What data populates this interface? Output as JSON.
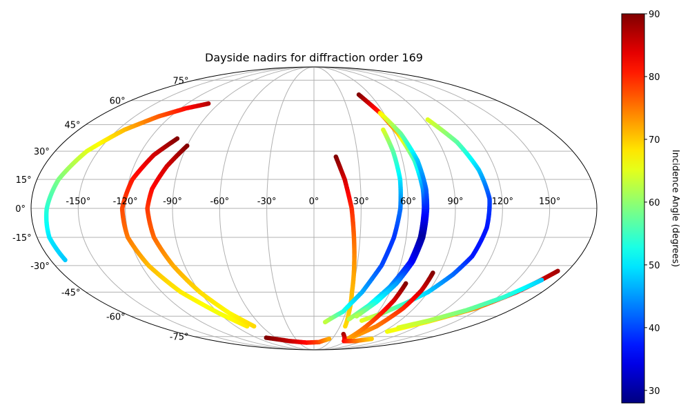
{
  "chart_data": {
    "type": "scatter",
    "projection": "mollweide",
    "title": "Dayside nadirs for diffraction order 169",
    "xlabel": "",
    "ylabel": "",
    "x_range": [
      -180,
      180
    ],
    "y_range": [
      -90,
      90
    ],
    "grid": true,
    "lon_tick_labels": [
      "-150°",
      "-120°",
      "-90°",
      "-60°",
      "-30°",
      "0°",
      "30°",
      "60°",
      "90°",
      "120°",
      "150°"
    ],
    "lon_tick_values": [
      -150,
      -120,
      -90,
      -60,
      -30,
      0,
      30,
      60,
      90,
      120,
      150
    ],
    "lat_tick_labels": [
      "75°",
      "60°",
      "45°",
      "30°",
      "15°",
      "0°",
      "-15°",
      "-30°",
      "-45°",
      "-60°",
      "-75°"
    ],
    "lat_tick_values": [
      75,
      60,
      45,
      30,
      15,
      0,
      -15,
      -30,
      -45,
      -60,
      -75
    ],
    "colorbar": {
      "label": "Incidence Angle (degrees)",
      "vmin": 28,
      "vmax": 90,
      "tick_values": [
        30,
        40,
        50,
        60,
        70,
        80,
        90
      ],
      "tick_labels": [
        "30",
        "40",
        "50",
        "60",
        "70",
        "80",
        "90"
      ],
      "colormap": "jet"
    },
    "series": [
      {
        "points": [
          {
            "lon": -100,
            "lat": 58,
            "inc": 87
          },
          {
            "lon": -115,
            "lat": 55,
            "inc": 82
          },
          {
            "lon": -130,
            "lat": 50,
            "inc": 77
          },
          {
            "lon": -145,
            "lat": 42,
            "inc": 71
          },
          {
            "lon": -158,
            "lat": 30,
            "inc": 65
          },
          {
            "lon": -166,
            "lat": 15,
            "inc": 59
          },
          {
            "lon": -170,
            "lat": 0,
            "inc": 54
          },
          {
            "lon": -172,
            "lat": -15,
            "inc": 50
          },
          {
            "lon": -170,
            "lat": -27,
            "inc": 48
          }
        ]
      },
      {
        "points": [
          {
            "lon": -100,
            "lat": 37,
            "inc": 90
          },
          {
            "lon": -110,
            "lat": 28,
            "inc": 85
          },
          {
            "lon": -118,
            "lat": 15,
            "inc": 81
          },
          {
            "lon": -122,
            "lat": 0,
            "inc": 78
          },
          {
            "lon": -121,
            "lat": -15,
            "inc": 75
          },
          {
            "lon": -115,
            "lat": -30,
            "inc": 71
          },
          {
            "lon": -105,
            "lat": -45,
            "inc": 68
          },
          {
            "lon": -90,
            "lat": -58,
            "inc": 66
          },
          {
            "lon": -77,
            "lat": -67,
            "inc": 68
          }
        ]
      },
      {
        "points": [
          {
            "lon": -90,
            "lat": 33,
            "inc": 90
          },
          {
            "lon": -98,
            "lat": 22,
            "inc": 85
          },
          {
            "lon": -104,
            "lat": 10,
            "inc": 82
          },
          {
            "lon": -106,
            "lat": 0,
            "inc": 79
          },
          {
            "lon": -104,
            "lat": -15,
            "inc": 76
          },
          {
            "lon": -98,
            "lat": -30,
            "inc": 72
          },
          {
            "lon": -90,
            "lat": -45,
            "inc": 69
          },
          {
            "lon": -80,
            "lat": -58,
            "inc": 67
          },
          {
            "lon": -69,
            "lat": -67,
            "inc": 69
          }
        ]
      },
      {
        "points": [
          {
            "lon": 15,
            "lat": 27,
            "inc": 90
          },
          {
            "lon": 20,
            "lat": 15,
            "inc": 85
          },
          {
            "lon": 24,
            "lat": 0,
            "inc": 80
          },
          {
            "lon": 26,
            "lat": -15,
            "inc": 76
          },
          {
            "lon": 28,
            "lat": -30,
            "inc": 73
          },
          {
            "lon": 30,
            "lat": -45,
            "inc": 71
          },
          {
            "lon": 33,
            "lat": -58,
            "inc": 70
          },
          {
            "lon": 36,
            "lat": -67,
            "inc": 69
          }
        ]
      },
      {
        "points": [
          {
            "lon": -75,
            "lat": -76,
            "inc": 90
          },
          {
            "lon": -45,
            "lat": -79,
            "inc": 86
          },
          {
            "lon": -15,
            "lat": -80.5,
            "inc": 82
          },
          {
            "lon": 10,
            "lat": -80,
            "inc": 78
          },
          {
            "lon": 25,
            "lat": -77,
            "inc": 72
          }
        ]
      },
      {
        "points": [
          {
            "lon": 53,
            "lat": 42,
            "inc": 65
          },
          {
            "lon": 55,
            "lat": 30,
            "inc": 57
          },
          {
            "lon": 56,
            "lat": 15,
            "inc": 50
          },
          {
            "lon": 55,
            "lat": 0,
            "inc": 43
          },
          {
            "lon": 52,
            "lat": -15,
            "inc": 39
          },
          {
            "lon": 47,
            "lat": -30,
            "inc": 40
          },
          {
            "lon": 38,
            "lat": -45,
            "inc": 46
          },
          {
            "lon": 27,
            "lat": -57,
            "inc": 53
          },
          {
            "lon": 12,
            "lat": -64,
            "inc": 63
          }
        ]
      },
      {
        "points": [
          {
            "lon": 48,
            "lat": 64,
            "inc": 90
          },
          {
            "lon": 57,
            "lat": 52,
            "inc": 80
          },
          {
            "lon": 63,
            "lat": 40,
            "inc": 70
          },
          {
            "lon": 68,
            "lat": 25,
            "inc": 55
          },
          {
            "lon": 70,
            "lat": 10,
            "inc": 45
          },
          {
            "lon": 70,
            "lat": 0,
            "inc": 38
          },
          {
            "lon": 69,
            "lat": -15,
            "inc": 30
          },
          {
            "lon": 66,
            "lat": -28,
            "inc": 36
          },
          {
            "lon": 58,
            "lat": -42,
            "inc": 45
          },
          {
            "lon": 48,
            "lat": -53,
            "inc": 53
          },
          {
            "lon": 36,
            "lat": -62,
            "inc": 62
          }
        ]
      },
      {
        "points": [
          {
            "lon": 57,
            "lat": 52,
            "inc": 68
          },
          {
            "lon": 65,
            "lat": 40,
            "inc": 58
          },
          {
            "lon": 70,
            "lat": 25,
            "inc": 48
          },
          {
            "lon": 72,
            "lat": 10,
            "inc": 42
          },
          {
            "lon": 72,
            "lat": 0,
            "inc": 38
          },
          {
            "lon": 71,
            "lat": -15,
            "inc": 30
          },
          {
            "lon": 68,
            "lat": -28,
            "inc": 35
          },
          {
            "lon": 62,
            "lat": -40,
            "inc": 45
          },
          {
            "lon": 53,
            "lat": -51,
            "inc": 52
          },
          {
            "lon": 42,
            "lat": -60,
            "inc": 62
          }
        ]
      },
      {
        "points": [
          {
            "lon": 93,
            "lat": 48,
            "inc": 65
          },
          {
            "lon": 103,
            "lat": 35,
            "inc": 57
          },
          {
            "lon": 109,
            "lat": 20,
            "inc": 48
          },
          {
            "lon": 112,
            "lat": 5,
            "inc": 40
          },
          {
            "lon": 111,
            "lat": -10,
            "inc": 37
          },
          {
            "lon": 107,
            "lat": -25,
            "inc": 37
          },
          {
            "lon": 100,
            "lat": -35,
            "inc": 42
          },
          {
            "lon": 90,
            "lat": -45,
            "inc": 48
          },
          {
            "lon": 78,
            "lat": -52,
            "inc": 54
          },
          {
            "lon": 65,
            "lat": -58,
            "inc": 60
          },
          {
            "lon": 50,
            "lat": -63,
            "inc": 65
          }
        ]
      },
      {
        "points": [
          {
            "lon": 85,
            "lat": -34,
            "inc": 90
          },
          {
            "lon": 84,
            "lat": -44,
            "inc": 85
          },
          {
            "lon": 80,
            "lat": -55,
            "inc": 80
          },
          {
            "lon": 72,
            "lat": -67,
            "inc": 75
          },
          {
            "lon": 60,
            "lat": -75,
            "inc": 72
          }
        ]
      },
      {
        "points": [
          {
            "lon": 69,
            "lat": -40,
            "inc": 90
          },
          {
            "lon": 67,
            "lat": -50,
            "inc": 85
          },
          {
            "lon": 63,
            "lat": -60,
            "inc": 80
          },
          {
            "lon": 59,
            "lat": -70,
            "inc": 75
          },
          {
            "lon": 55,
            "lat": -78,
            "inc": 72
          }
        ]
      },
      {
        "points": [
          {
            "lon": 41,
            "lat": -73,
            "inc": 88
          },
          {
            "lon": 55,
            "lat": -79,
            "inc": 82
          },
          {
            "lon": 75,
            "lat": -79,
            "inc": 76
          },
          {
            "lon": 95,
            "lat": -77,
            "inc": 70
          }
        ]
      },
      {
        "points": [
          {
            "lon": 173,
            "lat": -33,
            "inc": 88
          },
          {
            "lon": 160,
            "lat": -45,
            "inc": 82
          },
          {
            "lon": 145,
            "lat": -55,
            "inc": 74
          },
          {
            "lon": 120,
            "lat": -64,
            "inc": 68
          },
          {
            "lon": 95,
            "lat": -71,
            "inc": 66
          }
        ]
      },
      {
        "points": [
          {
            "lon": 168,
            "lat": -38,
            "inc": 48
          },
          {
            "lon": 155,
            "lat": -48,
            "inc": 54
          },
          {
            "lon": 140,
            "lat": -56,
            "inc": 58
          },
          {
            "lon": 120,
            "lat": -63,
            "inc": 62
          },
          {
            "lon": 100,
            "lat": -68,
            "inc": 65
          }
        ]
      }
    ]
  }
}
